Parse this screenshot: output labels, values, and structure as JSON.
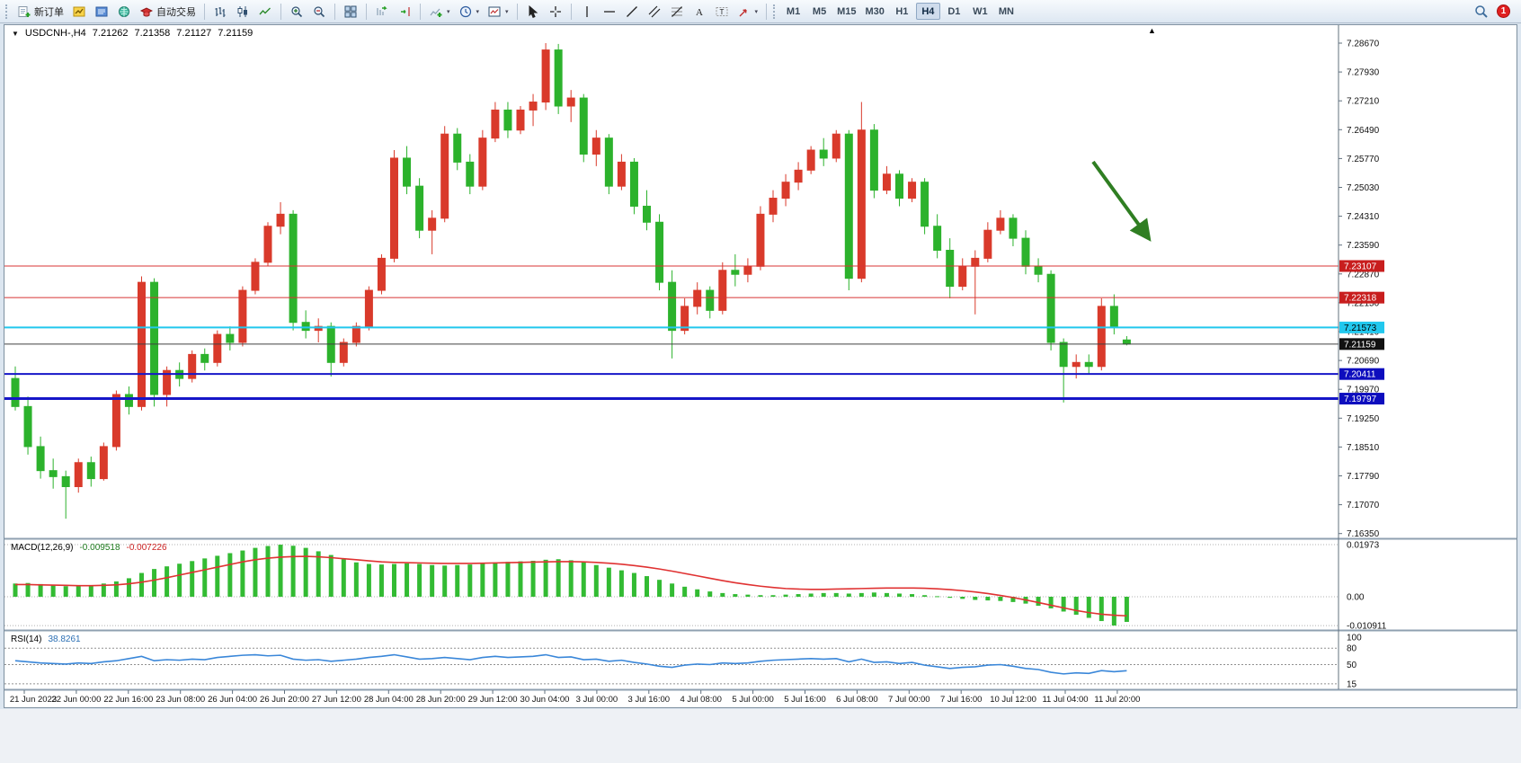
{
  "toolbar": {
    "new_order_label": "新订单",
    "auto_trading_label": "自动交易",
    "timeframes": [
      "M1",
      "M5",
      "M15",
      "M30",
      "H1",
      "H4",
      "D1",
      "W1",
      "MN"
    ],
    "active_timeframe": "H4",
    "notification_count": "1"
  },
  "chart": {
    "symbol_period": "USDCNH-,H4",
    "o": "7.21262",
    "h": "7.21358",
    "l": "7.21127",
    "c": "7.21159"
  },
  "chart_data": {
    "type": "candlestick",
    "symbol": "USDCNH-",
    "timeframe": "H4",
    "current_bar": {
      "open": 7.21262,
      "high": 7.21358,
      "low": 7.21127,
      "close": 7.21159
    },
    "up_color": "#d93a2b",
    "down_color": "#2cb22c",
    "price_axis": [
      "7.28670",
      "7.27930",
      "7.27210",
      "7.26490",
      "7.25770",
      "7.25030",
      "7.24310",
      "7.23590",
      "7.22870",
      "7.22150",
      "7.21410",
      "7.20690",
      "7.19970",
      "7.19250",
      "7.18510",
      "7.17790",
      "7.17070",
      "7.16350"
    ],
    "time_axis": [
      "21 Jun 2023",
      "22 Jun 00:00",
      "22 Jun 16:00",
      "23 Jun 08:00",
      "26 Jun 04:00",
      "26 Jun 20:00",
      "27 Jun 12:00",
      "28 Jun 04:00",
      "28 Jun 20:00",
      "29 Jun 12:00",
      "30 Jun 04:00",
      "3 Jul 00:00",
      "3 Jul 16:00",
      "4 Jul 08:00",
      "5 Jul 00:00",
      "5 Jul 16:00",
      "6 Jul 08:00",
      "7 Jul 00:00",
      "7 Jul 16:00",
      "10 Jul 12:00",
      "11 Jul 04:00",
      "11 Jul 20:00"
    ],
    "ohlc": [
      [
        7.203,
        7.206,
        7.195,
        7.196
      ],
      [
        7.196,
        7.1985,
        7.184,
        7.186
      ],
      [
        7.186,
        7.1885,
        7.178,
        7.18
      ],
      [
        7.18,
        7.183,
        7.1755,
        7.1785
      ],
      [
        7.1785,
        7.18,
        7.168,
        7.176
      ],
      [
        7.176,
        7.183,
        7.1745,
        7.182
      ],
      [
        7.182,
        7.1835,
        7.176,
        7.178
      ],
      [
        7.178,
        7.187,
        7.1775,
        7.186
      ],
      [
        7.186,
        7.2,
        7.185,
        7.199
      ],
      [
        7.199,
        7.201,
        7.194,
        7.196
      ],
      [
        7.196,
        7.2285,
        7.195,
        7.227
      ],
      [
        7.227,
        7.228,
        7.196,
        7.199
      ],
      [
        7.199,
        7.206,
        7.196,
        7.205
      ],
      [
        7.205,
        7.207,
        7.201,
        7.203
      ],
      [
        7.203,
        7.21,
        7.202,
        7.209
      ],
      [
        7.209,
        7.2105,
        7.205,
        7.207
      ],
      [
        7.207,
        7.215,
        7.206,
        7.214
      ],
      [
        7.214,
        7.216,
        7.21,
        7.212
      ],
      [
        7.212,
        7.226,
        7.211,
        7.225
      ],
      [
        7.225,
        7.233,
        7.224,
        7.232
      ],
      [
        7.232,
        7.242,
        7.231,
        7.241
      ],
      [
        7.241,
        7.247,
        7.239,
        7.244
      ],
      [
        7.244,
        7.245,
        7.215,
        7.217
      ],
      [
        7.217,
        7.22,
        7.213,
        7.215
      ],
      [
        7.215,
        7.218,
        7.212,
        7.216
      ],
      [
        7.216,
        7.217,
        7.2035,
        7.207
      ],
      [
        7.207,
        7.213,
        7.206,
        7.212
      ],
      [
        7.212,
        7.217,
        7.211,
        7.216
      ],
      [
        7.216,
        7.226,
        7.215,
        7.225
      ],
      [
        7.225,
        7.234,
        7.224,
        7.233
      ],
      [
        7.233,
        7.26,
        7.232,
        7.258
      ],
      [
        7.258,
        7.261,
        7.249,
        7.251
      ],
      [
        7.251,
        7.253,
        7.238,
        7.24
      ],
      [
        7.24,
        7.245,
        7.234,
        7.243
      ],
      [
        7.243,
        7.266,
        7.242,
        7.264
      ],
      [
        7.264,
        7.2655,
        7.255,
        7.257
      ],
      [
        7.257,
        7.259,
        7.249,
        7.251
      ],
      [
        7.251,
        7.265,
        7.25,
        7.263
      ],
      [
        7.263,
        7.272,
        7.262,
        7.27
      ],
      [
        7.27,
        7.272,
        7.263,
        7.265
      ],
      [
        7.265,
        7.271,
        7.264,
        7.27
      ],
      [
        7.27,
        7.274,
        7.266,
        7.272
      ],
      [
        7.272,
        7.2867,
        7.27,
        7.285
      ],
      [
        7.285,
        7.2865,
        7.269,
        7.271
      ],
      [
        7.271,
        7.275,
        7.267,
        7.273
      ],
      [
        7.273,
        7.274,
        7.257,
        7.259
      ],
      [
        7.259,
        7.265,
        7.256,
        7.263
      ],
      [
        7.263,
        7.264,
        7.249,
        7.251
      ],
      [
        7.251,
        7.259,
        7.25,
        7.257
      ],
      [
        7.257,
        7.258,
        7.244,
        7.246
      ],
      [
        7.246,
        7.25,
        7.24,
        7.242
      ],
      [
        7.242,
        7.244,
        7.225,
        7.227
      ],
      [
        7.227,
        7.23,
        7.208,
        7.215
      ],
      [
        7.215,
        7.223,
        7.214,
        7.221
      ],
      [
        7.221,
        7.227,
        7.219,
        7.225
      ],
      [
        7.225,
        7.226,
        7.218,
        7.22
      ],
      [
        7.22,
        7.232,
        7.219,
        7.23
      ],
      [
        7.23,
        7.234,
        7.226,
        7.229
      ],
      [
        7.229,
        7.233,
        7.227,
        7.231
      ],
      [
        7.231,
        7.246,
        7.23,
        7.244
      ],
      [
        7.244,
        7.25,
        7.242,
        7.248
      ],
      [
        7.248,
        7.254,
        7.246,
        7.252
      ],
      [
        7.252,
        7.257,
        7.25,
        7.255
      ],
      [
        7.255,
        7.261,
        7.254,
        7.26
      ],
      [
        7.26,
        7.263,
        7.256,
        7.258
      ],
      [
        7.258,
        7.265,
        7.257,
        7.264
      ],
      [
        7.264,
        7.265,
        7.225,
        7.228
      ],
      [
        7.228,
        7.272,
        7.227,
        7.265
      ],
      [
        7.265,
        7.2665,
        7.248,
        7.25
      ],
      [
        7.25,
        7.256,
        7.249,
        7.254
      ],
      [
        7.254,
        7.255,
        7.246,
        7.248
      ],
      [
        7.248,
        7.253,
        7.247,
        7.252
      ],
      [
        7.252,
        7.253,
        7.239,
        7.241
      ],
      [
        7.241,
        7.244,
        7.233,
        7.235
      ],
      [
        7.235,
        7.238,
        7.223,
        7.226
      ],
      [
        7.226,
        7.233,
        7.225,
        7.231
      ],
      [
        7.231,
        7.235,
        7.219,
        7.233
      ],
      [
        7.233,
        7.242,
        7.232,
        7.24
      ],
      [
        7.24,
        7.245,
        7.239,
        7.243
      ],
      [
        7.243,
        7.244,
        7.236,
        7.238
      ],
      [
        7.238,
        7.24,
        7.229,
        7.231
      ],
      [
        7.231,
        7.233,
        7.227,
        7.229
      ],
      [
        7.229,
        7.23,
        7.21,
        7.212
      ],
      [
        7.212,
        7.213,
        7.197,
        7.206
      ],
      [
        7.206,
        7.209,
        7.203,
        7.207
      ],
      [
        7.207,
        7.209,
        7.204,
        7.206
      ],
      [
        7.206,
        7.223,
        7.205,
        7.221
      ],
      [
        7.221,
        7.224,
        7.214,
        7.216
      ],
      [
        7.21262,
        7.21358,
        7.21127,
        7.21159
      ]
    ],
    "lines": [
      {
        "price": 7.23107,
        "label": "7.23107",
        "color": "#d83434",
        "width": 1,
        "tag_bg": "#c81e1e",
        "tag_fg": "#ffffff"
      },
      {
        "price": 7.22318,
        "label": "7.22318",
        "color": "#d83434",
        "width": 1,
        "tag_bg": "#c81e1e",
        "tag_fg": "#ffffff"
      },
      {
        "price": 7.21573,
        "label": "7.21573",
        "color": "#22c8ee",
        "width": 2,
        "tag_bg": "#22c8ee",
        "tag_fg": "#000000"
      },
      {
        "price": 7.21159,
        "label": "7.21159",
        "color": "#404040",
        "width": 1,
        "tag_bg": "#111111",
        "tag_fg": "#ffffff"
      },
      {
        "price": 7.20411,
        "label": "7.20411",
        "color": "#1616c8",
        "width": 2,
        "tag_bg": "#0d0dbe",
        "tag_fg": "#ffffff"
      },
      {
        "price": 7.19797,
        "label": "7.19797",
        "color": "#1616c8",
        "width": 3,
        "tag_bg": "#0d0dbe",
        "tag_fg": "#ffffff"
      }
    ],
    "macd": {
      "name": "MACD(12,26,9)",
      "main": "-0.009518",
      "signal": "-0.007226",
      "hist_color": "#33bb33",
      "signal_color": "#e03232",
      "axis": [
        {
          "label": "0.01973",
          "value": 0.01973
        },
        {
          "label": "0.00",
          "value": 0
        },
        {
          "label": "-0.010911",
          "value": -0.010911
        }
      ],
      "hist": [
        0.005,
        0.0052,
        0.0048,
        0.0044,
        0.004,
        0.0042,
        0.0044,
        0.005,
        0.0058,
        0.007,
        0.009,
        0.0105,
        0.0115,
        0.0125,
        0.0135,
        0.0145,
        0.0155,
        0.0165,
        0.0175,
        0.0185,
        0.0192,
        0.0197,
        0.0193,
        0.0185,
        0.0172,
        0.0158,
        0.0142,
        0.013,
        0.0124,
        0.0122,
        0.0124,
        0.0126,
        0.0124,
        0.012,
        0.0118,
        0.012,
        0.0122,
        0.0126,
        0.013,
        0.0132,
        0.0134,
        0.0136,
        0.014,
        0.0142,
        0.0138,
        0.013,
        0.012,
        0.011,
        0.01,
        0.009,
        0.0078,
        0.0064,
        0.005,
        0.0038,
        0.0028,
        0.002,
        0.0014,
        0.001,
        0.0008,
        0.0006,
        0.0006,
        0.0008,
        0.001,
        0.0012,
        0.0014,
        0.0014,
        0.0012,
        0.0014,
        0.0016,
        0.0014,
        0.0012,
        0.001,
        0.0006,
        0.0002,
        -0.0004,
        -0.0008,
        -0.0012,
        -0.0014,
        -0.0016,
        -0.002,
        -0.0026,
        -0.0034,
        -0.0044,
        -0.0056,
        -0.0068,
        -0.008,
        -0.0092,
        -0.0109,
        -0.009518
      ],
      "signal_line": [
        0.0046,
        0.0046,
        0.0045,
        0.0044,
        0.0043,
        0.0042,
        0.0042,
        0.0043,
        0.0045,
        0.0049,
        0.0055,
        0.0063,
        0.0072,
        0.0082,
        0.0092,
        0.0102,
        0.0112,
        0.0122,
        0.0132,
        0.014,
        0.0146,
        0.015,
        0.0152,
        0.0153,
        0.0151,
        0.0148,
        0.0144,
        0.014,
        0.0136,
        0.0132,
        0.013,
        0.0129,
        0.0128,
        0.0127,
        0.0126,
        0.0126,
        0.0126,
        0.0127,
        0.0128,
        0.0129,
        0.013,
        0.0131,
        0.0132,
        0.0133,
        0.0133,
        0.0132,
        0.013,
        0.0127,
        0.0123,
        0.0118,
        0.0112,
        0.0105,
        0.0097,
        0.0088,
        0.0079,
        0.007,
        0.0061,
        0.0053,
        0.0046,
        0.004,
        0.0035,
        0.0031,
        0.0029,
        0.0028,
        0.0028,
        0.0029,
        0.003,
        0.0031,
        0.0032,
        0.0033,
        0.0033,
        0.0033,
        0.0032,
        0.003,
        0.0027,
        0.0023,
        0.0018,
        0.0012,
        0.0005,
        -0.0003,
        -0.0012,
        -0.0022,
        -0.0032,
        -0.0042,
        -0.0052,
        -0.006,
        -0.0066,
        -0.007,
        -0.007226
      ]
    },
    "rsi": {
      "name": "RSI(14)",
      "value": "38.8261",
      "line_color": "#3a87d9",
      "axis": [
        {
          "label": "100",
          "value": 100
        },
        {
          "label": "80",
          "value": 80
        },
        {
          "label": "50",
          "value": 50
        },
        {
          "label": "15",
          "value": 15
        }
      ],
      "levels": [
        80,
        50,
        15
      ],
      "values": [
        57,
        55,
        53,
        52,
        51,
        53,
        52,
        55,
        57,
        61,
        65,
        57,
        59,
        58,
        60,
        59,
        63,
        65,
        67,
        68,
        66,
        67,
        60,
        58,
        59,
        56,
        58,
        60,
        63,
        65,
        68,
        64,
        60,
        61,
        63,
        61,
        59,
        63,
        65,
        63,
        64,
        65,
        68,
        63,
        64,
        59,
        60,
        56,
        58,
        54,
        51,
        47,
        45,
        49,
        51,
        50,
        53,
        52,
        53,
        56,
        58,
        59,
        60,
        61,
        60,
        61,
        55,
        60,
        54,
        55,
        52,
        54,
        49,
        46,
        43,
        45,
        46,
        49,
        50,
        47,
        43,
        41,
        36,
        33,
        35,
        34,
        39,
        37,
        38.83
      ]
    },
    "annotations": [
      {
        "type": "arrow",
        "direction": "down-right",
        "color": "#2f7e22"
      }
    ]
  }
}
